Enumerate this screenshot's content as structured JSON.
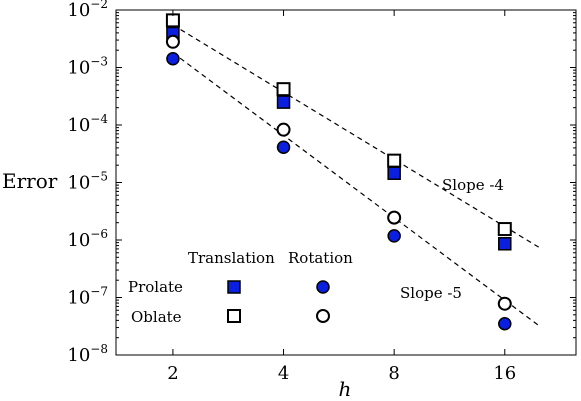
{
  "chart_data": {
    "type": "scatter",
    "xlabel": "h",
    "ylabel": "Error",
    "xscale": "log2",
    "yscale": "log10",
    "xlim": [
      1.4,
      25
    ],
    "ylim": [
      1e-08,
      0.01
    ],
    "x_ticks": [
      2,
      4,
      8,
      16
    ],
    "x_tick_labels": [
      "2",
      "4",
      "8",
      "16"
    ],
    "y_ticks": [
      1e-08,
      1e-07,
      1e-06,
      1e-05,
      0.0001,
      0.001,
      0.01
    ],
    "y_tick_labels": [
      {
        "base": "10",
        "exp": "−8"
      },
      {
        "base": "10",
        "exp": "−7"
      },
      {
        "base": "10",
        "exp": "−6"
      },
      {
        "base": "10",
        "exp": "−5"
      },
      {
        "base": "10",
        "exp": "−4"
      },
      {
        "base": "10",
        "exp": "−3"
      },
      {
        "base": "10",
        "exp": "−2"
      }
    ],
    "grid": false,
    "series": [
      {
        "name": "Prolate Translation",
        "marker": "square",
        "filled": true,
        "color": "#0a1fe0",
        "x": [
          2,
          4,
          8,
          16
        ],
        "y": [
          0.0039,
          0.00025,
          1.45e-05,
          8.6e-07
        ]
      },
      {
        "name": "Oblate Translation",
        "marker": "square",
        "filled": false,
        "color": "#000000",
        "x": [
          2,
          4,
          8,
          16
        ],
        "y": [
          0.0066,
          0.00042,
          2.4e-05,
          1.55e-06
        ]
      },
      {
        "name": "Prolate Rotation",
        "marker": "circle",
        "filled": true,
        "color": "#0a1fe0",
        "x": [
          2,
          4,
          8,
          16
        ],
        "y": [
          0.00142,
          4.1e-05,
          1.18e-06,
          3.5e-08
        ]
      },
      {
        "name": "Oblate Rotation",
        "marker": "circle",
        "filled": false,
        "color": "#000000",
        "x": [
          2,
          4,
          8,
          16
        ],
        "y": [
          0.0028,
          8.3e-05,
          2.45e-06,
          7.8e-08
        ]
      }
    ],
    "reference_lines": [
      {
        "label": "Slope -4",
        "style": "dashed",
        "x": [
          2,
          20
        ],
        "y": [
          0.0055,
          7.2e-07
        ]
      },
      {
        "label": "Slope -5",
        "style": "dashed",
        "x": [
          2,
          20
        ],
        "y": [
          0.0018,
          3.1e-08
        ]
      }
    ],
    "legend": {
      "placement": "bottom-left",
      "columns": [
        "Translation",
        "Rotation"
      ],
      "rows": [
        "Prolate",
        "Oblate"
      ]
    }
  }
}
